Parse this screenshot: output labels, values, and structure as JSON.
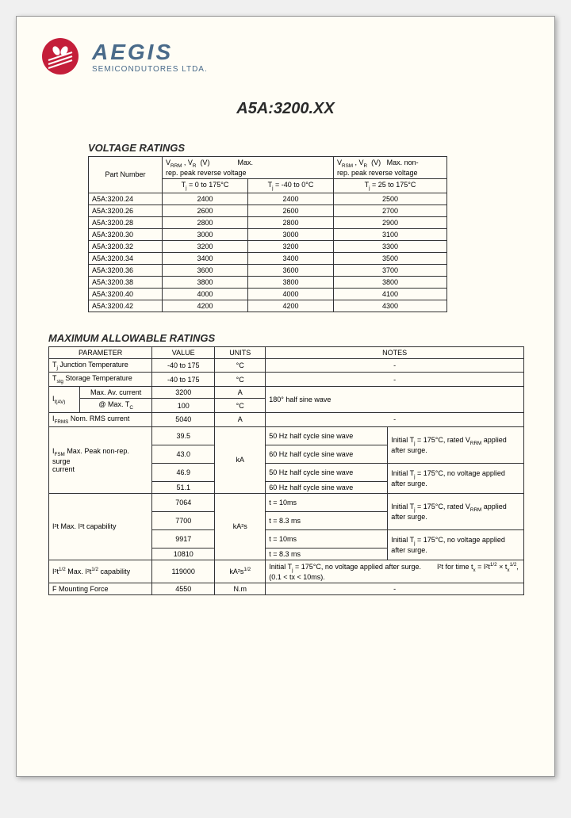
{
  "brand": {
    "name": "AEGIS",
    "subtitle": "SEMICONDUTORES LTDA."
  },
  "partTitle": "A5A:3200.XX",
  "voltageSection": {
    "title": "VOLTAGE RATINGS",
    "headers": {
      "partNumber": "Part Number",
      "vrrm": "V_RRM , V_R   (V)         Max. rep. peak reverse voltage",
      "vrsm": "V_RSM , V_R   (V)   Max. non-rep. peak reverse voltage",
      "tj1": "T_j = 0 to 175°C",
      "tj2": "T_j = -40 to 0°C",
      "tj3": "T_j = 25 to 175°C"
    },
    "rows": [
      {
        "pn": "A5A:3200.24",
        "v1": "2400",
        "v2": "2400",
        "v3": "2500"
      },
      {
        "pn": "A5A:3200.26",
        "v1": "2600",
        "v2": "2600",
        "v3": "2700"
      },
      {
        "pn": "A5A:3200.28",
        "v1": "2800",
        "v2": "2800",
        "v3": "2900"
      },
      {
        "pn": "A5A:3200.30",
        "v1": "3000",
        "v2": "3000",
        "v3": "3100"
      },
      {
        "pn": "A5A:3200.32",
        "v1": "3200",
        "v2": "3200",
        "v3": "3300"
      },
      {
        "pn": "A5A:3200.34",
        "v1": "3400",
        "v2": "3400",
        "v3": "3500"
      },
      {
        "pn": "A5A:3200.36",
        "v1": "3600",
        "v2": "3600",
        "v3": "3700"
      },
      {
        "pn": "A5A:3200.38",
        "v1": "3800",
        "v2": "3800",
        "v3": "3800"
      },
      {
        "pn": "A5A:3200.40",
        "v1": "4000",
        "v2": "4000",
        "v3": "4100"
      },
      {
        "pn": "A5A:3200.42",
        "v1": "4200",
        "v2": "4200",
        "v3": "4300"
      }
    ]
  },
  "maxSection": {
    "title": "MAXIMUM ALLOWABLE RATINGS",
    "headers": {
      "param": "PARAMETER",
      "value": "VALUE",
      "units": "UNITS",
      "notes": "NOTES"
    },
    "rows": {
      "tj": {
        "p": "T_j Junction Temperature",
        "v": "-40 to 175",
        "u": "°C",
        "n": "-"
      },
      "tstg": {
        "p": "T_stg Storage Temperature",
        "v": "-40 to 175",
        "u": "°C",
        "n": "-"
      },
      "ifav_label": "I_f(AV)",
      "ifav1": {
        "p": "Max. Av. current",
        "v": "3200",
        "u": "A"
      },
      "ifav2": {
        "p": "@ Max. T_C",
        "v": "100",
        "u": "°C"
      },
      "ifav_n": "180° half sine wave",
      "ifrms": {
        "p": "I_FRMS Nom. RMS current",
        "v": "5040",
        "u": "A",
        "n": "-"
      },
      "ifsm_label": "I_FSM Max. Peak non-rep. surge current",
      "ifsm_u": "kA",
      "ifsm1": {
        "v": "39.5",
        "n1": "50 Hz half cycle sine wave"
      },
      "ifsm2": {
        "v": "43.0",
        "n1": "60 Hz half cycle sine wave"
      },
      "ifsm_note1": "Initial T_j = 175°C, rated V_RRM applied after surge.",
      "ifsm3": {
        "v": "46.9",
        "n1": "50 Hz half cycle sine wave"
      },
      "ifsm4": {
        "v": "51.1",
        "n1": "60 Hz half cycle sine wave"
      },
      "ifsm_note2": "Initial T_j = 175°C, no voltage applied after surge.",
      "i2t_label": "I²t Max. I²t capability",
      "i2t_u": "kA²s",
      "i2t1": {
        "v": "7064",
        "n1": "t = 10ms"
      },
      "i2t2": {
        "v": "7700",
        "n1": "t = 8.3 ms"
      },
      "i2t_note1": "Initial T_j = 175°C, rated V_RRM applied after surge.",
      "i2t3": {
        "v": "9917",
        "n1": "t = 10ms"
      },
      "i2t4": {
        "v": "10810",
        "n1": "t = 8.3 ms"
      },
      "i2t_note2": "Initial T_j = 175°C, no voltage applied after surge.",
      "i2rt": {
        "p": "I²t^1/2 Max. I²t^1/2 capability",
        "v": "119000",
        "u": "kA²s^1/2",
        "n": "Initial T_j = 175°C, no voltage applied after surge.        I²t for time t_x = I²t^1/2 × t_x^1/2, (0.1 < tx < 10ms)."
      },
      "fmount": {
        "p": "F Mounting Force",
        "v": "4550",
        "u": "N.m",
        "n": "-"
      }
    }
  }
}
